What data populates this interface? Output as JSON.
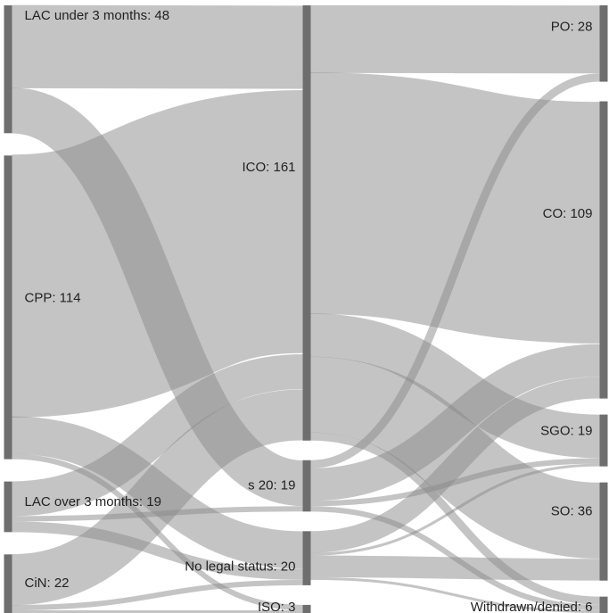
{
  "chart_data": {
    "type": "sankey",
    "stages": [
      [
        "LAC under 3 months",
        "CPP",
        "LAC over 3 months",
        "CiN"
      ],
      [
        "ICO",
        "s 20",
        "No legal status",
        "ISO"
      ],
      [
        "PO",
        "CO",
        "SGO",
        "SO",
        "Withdrawn/denied"
      ]
    ],
    "nodes": [
      {
        "id": "LAC under 3 months",
        "label": "LAC under 3 months: 48",
        "value": 48
      },
      {
        "id": "CPP",
        "label": "CPP: 114",
        "value": 114
      },
      {
        "id": "LAC over 3 months",
        "label": "LAC over 3 months: 19",
        "value": 19
      },
      {
        "id": "CiN",
        "label": "CiN: 22",
        "value": 22
      },
      {
        "id": "ICO",
        "label": "ICO: 161",
        "value": 161
      },
      {
        "id": "s 20",
        "label": "s 20: 19",
        "value": 19
      },
      {
        "id": "No legal status",
        "label": "No legal status: 20",
        "value": 20
      },
      {
        "id": "ISO",
        "label": "ISO: 3",
        "value": 3
      },
      {
        "id": "PO",
        "label": "PO: 28",
        "value": 28
      },
      {
        "id": "CO",
        "label": "CO: 109",
        "value": 109
      },
      {
        "id": "SGO",
        "label": "SGO: 19",
        "value": 19
      },
      {
        "id": "SO",
        "label": "SO: 36",
        "value": 36
      },
      {
        "id": "Withdrawn/denied",
        "label": "Withdrawn/denied: 6",
        "value": 6
      }
    ],
    "links": [
      {
        "source": "LAC under 3 months",
        "target": "ICO",
        "value": 31
      },
      {
        "source": "LAC under 3 months",
        "target": "s 20",
        "value": 17
      },
      {
        "source": "CPP",
        "target": "ICO",
        "value": 98
      },
      {
        "source": "CPP",
        "target": "No legal status",
        "value": 14
      },
      {
        "source": "CPP",
        "target": "ISO",
        "value": 2
      },
      {
        "source": "LAC over 3 months",
        "target": "ICO",
        "value": 13
      },
      {
        "source": "LAC over 3 months",
        "target": "s 20",
        "value": 2
      },
      {
        "source": "LAC over 3 months",
        "target": "No legal status",
        "value": 4
      },
      {
        "source": "CiN",
        "target": "ICO",
        "value": 19
      },
      {
        "source": "CiN",
        "target": "No legal status",
        "value": 2
      },
      {
        "source": "CiN",
        "target": "ISO",
        "value": 1
      },
      {
        "source": "ICO",
        "target": "PO",
        "value": 25
      },
      {
        "source": "ICO",
        "target": "CO",
        "value": 89
      },
      {
        "source": "ICO",
        "target": "SGO",
        "value": 16
      },
      {
        "source": "ICO",
        "target": "SO",
        "value": 28
      },
      {
        "source": "ICO",
        "target": "Withdrawn/denied",
        "value": 3
      },
      {
        "source": "s 20",
        "target": "PO",
        "value": 3
      },
      {
        "source": "s 20",
        "target": "CO",
        "value": 12
      },
      {
        "source": "s 20",
        "target": "SGO",
        "value": 2
      },
      {
        "source": "s 20",
        "target": "Withdrawn/denied",
        "value": 2
      },
      {
        "source": "No legal status",
        "target": "CO",
        "value": 8
      },
      {
        "source": "No legal status",
        "target": "SGO",
        "value": 1
      },
      {
        "source": "No legal status",
        "target": "SO",
        "value": 8
      },
      {
        "source": "No legal status",
        "target": "Withdrawn/denied",
        "value": 1
      },
      {
        "source": "No legal status",
        "target": "PO",
        "value": 0
      },
      {
        "source": "ISO",
        "target": "SO",
        "value": 0
      },
      {
        "source": "ISO",
        "target": "Withdrawn/denied",
        "value": 0
      }
    ]
  }
}
